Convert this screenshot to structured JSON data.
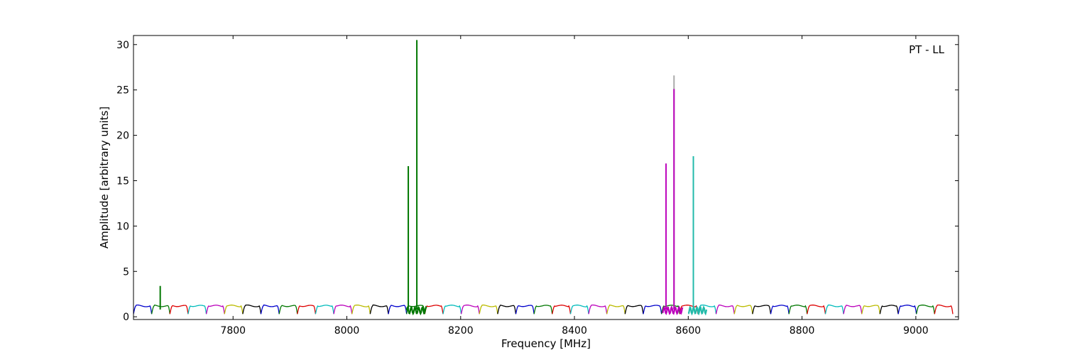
{
  "chart_data": {
    "type": "line",
    "annotation": "PT - LL",
    "xlabel": "Frequency [MHz]",
    "ylabel": "Amplitude [arbitrary units]",
    "xlim": [
      7625,
      9075
    ],
    "ylim": [
      -0.3,
      31
    ],
    "xticks": [
      7800,
      8000,
      8200,
      8400,
      8600,
      8800,
      9000
    ],
    "yticks": [
      0,
      5,
      10,
      15,
      20,
      25,
      30
    ],
    "grid": false,
    "legend": "none",
    "channel_width_mhz": 32,
    "channel_colors": [
      "#0000cc",
      "#007700",
      "#dd0000",
      "#00bbbb",
      "#bb00bb",
      "#bbbb00",
      "#000000"
    ],
    "channel_start_frequencies": [
      7625,
      7657,
      7689,
      7721,
      7753,
      7785,
      7817,
      7849,
      7881,
      7913,
      7945,
      7977,
      8009,
      8041,
      8073,
      8105,
      8137,
      8169,
      8201,
      8233,
      8265,
      8297,
      8329,
      8361,
      8393,
      8425,
      8457,
      8489,
      8521,
      8553,
      8585,
      8617,
      8649,
      8681,
      8713,
      8745,
      8777,
      8809,
      8841,
      8873,
      8905,
      8937,
      8969,
      9001,
      9033
    ],
    "baseline_level": 1.2,
    "baseline_dip_level": 0.3,
    "spikes": [
      {
        "x": 7672,
        "y": 3.4,
        "color": "#007700"
      },
      {
        "x": 8108,
        "y": 16.6,
        "color": "#007700"
      },
      {
        "x": 8123,
        "y": 30.5,
        "color": "#007700"
      },
      {
        "x": 8561,
        "y": 16.9,
        "color": "#bb00bb"
      },
      {
        "x": 8575,
        "y": 26.6,
        "color": "#aaaaaa"
      },
      {
        "x": 8575,
        "y": 25.1,
        "color": "#bb00bb"
      },
      {
        "x": 8609,
        "y": 17.7,
        "color": "#22bbaa"
      }
    ],
    "noise_regions": [
      {
        "x_start": 8105,
        "x_end": 8140,
        "color": "#007700"
      },
      {
        "x_start": 8555,
        "x_end": 8590,
        "color": "#bb00bb"
      },
      {
        "x_start": 8600,
        "x_end": 8632,
        "color": "#22bbaa"
      }
    ]
  }
}
